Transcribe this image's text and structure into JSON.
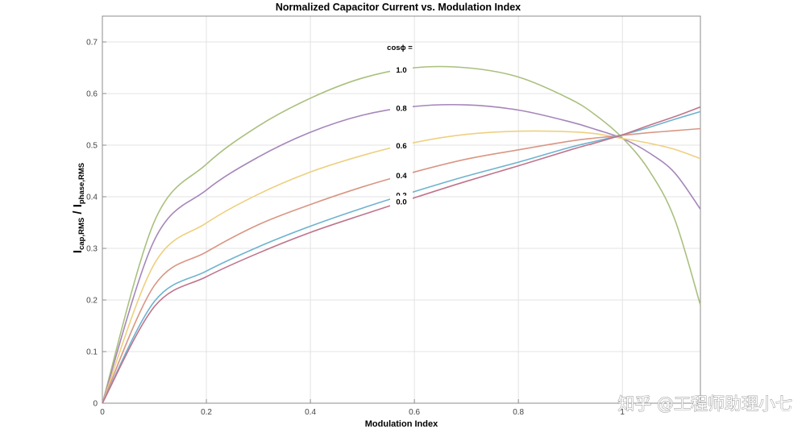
{
  "chart_data": {
    "type": "line",
    "title": "Normalized Capacitor Current vs. Modulation Index",
    "xlabel": "Modulation Index",
    "ylabel": {
      "base1": "I",
      "sub1": "cap,RMS",
      "sep": " / ",
      "base2": "I",
      "sub2": "phase,RMS"
    },
    "xlim": [
      0,
      1.15
    ],
    "ylim": [
      0,
      0.75
    ],
    "x_ticks": [
      "0",
      "0.2",
      "0.4",
      "0.6",
      "0.8",
      "1"
    ],
    "y_ticks": [
      "0",
      "0.1",
      "0.2",
      "0.3",
      "0.4",
      "0.5",
      "0.6",
      "0.7"
    ],
    "grid": true,
    "annotation_header": "cosϕ =",
    "series": [
      {
        "name": "1.0",
        "color": "#a9c07e",
        "x": [
          0,
          0.1,
          0.2,
          0.3,
          0.4,
          0.5,
          0.6,
          0.7,
          0.8,
          0.9,
          0.95,
          1.0,
          1.05,
          1.1,
          1.15
        ],
        "y": [
          0,
          0.352,
          0.463,
          0.537,
          0.591,
          0.63,
          0.65,
          0.65,
          0.632,
          0.589,
          0.557,
          0.514,
          0.453,
          0.358,
          0.19
        ]
      },
      {
        "name": "0.8",
        "color": "#a586b9",
        "x": [
          0,
          0.1,
          0.2,
          0.3,
          0.4,
          0.5,
          0.6,
          0.7,
          0.8,
          0.9,
          0.95,
          1.0,
          1.05,
          1.1,
          1.15
        ],
        "y": [
          0,
          0.316,
          0.413,
          0.477,
          0.525,
          0.558,
          0.575,
          0.578,
          0.568,
          0.545,
          0.53,
          0.513,
          0.486,
          0.447,
          0.376
        ]
      },
      {
        "name": "0.6",
        "color": "#eed080",
        "x": [
          0,
          0.1,
          0.2,
          0.3,
          0.4,
          0.5,
          0.6,
          0.7,
          0.8,
          0.9,
          0.95,
          1.0,
          1.05,
          1.1,
          1.15
        ],
        "y": [
          0,
          0.27,
          0.349,
          0.405,
          0.448,
          0.48,
          0.505,
          0.521,
          0.527,
          0.526,
          0.522,
          0.513,
          0.504,
          0.492,
          0.474
        ]
      },
      {
        "name": "0.4",
        "color": "#d99683",
        "x": [
          0,
          0.1,
          0.2,
          0.3,
          0.4,
          0.5,
          0.6,
          0.7,
          0.8,
          0.9,
          0.95,
          1.0,
          1.05,
          1.1,
          1.15
        ],
        "y": [
          0,
          0.228,
          0.293,
          0.346,
          0.385,
          0.419,
          0.448,
          0.473,
          0.491,
          0.508,
          0.514,
          0.519,
          0.524,
          0.528,
          0.532
        ]
      },
      {
        "name": "0.2",
        "color": "#6eb3cf",
        "x": [
          0,
          0.1,
          0.2,
          0.3,
          0.4,
          0.5,
          0.6,
          0.7,
          0.8,
          0.9,
          0.95,
          1.0,
          1.05,
          1.1,
          1.15
        ],
        "y": [
          0,
          0.197,
          0.256,
          0.303,
          0.343,
          0.378,
          0.41,
          0.44,
          0.467,
          0.496,
          0.508,
          0.52,
          0.534,
          0.55,
          0.565
        ]
      },
      {
        "name": "0.0",
        "color": "#c0748c",
        "x": [
          0,
          0.1,
          0.2,
          0.3,
          0.4,
          0.5,
          0.6,
          0.7,
          0.8,
          0.9,
          0.95,
          1.0,
          1.05,
          1.1,
          1.15
        ],
        "y": [
          0,
          0.187,
          0.245,
          0.291,
          0.331,
          0.365,
          0.398,
          0.43,
          0.46,
          0.491,
          0.505,
          0.52,
          0.538,
          0.555,
          0.574
        ]
      }
    ]
  },
  "watermark": "知乎 @工程师助理小七"
}
